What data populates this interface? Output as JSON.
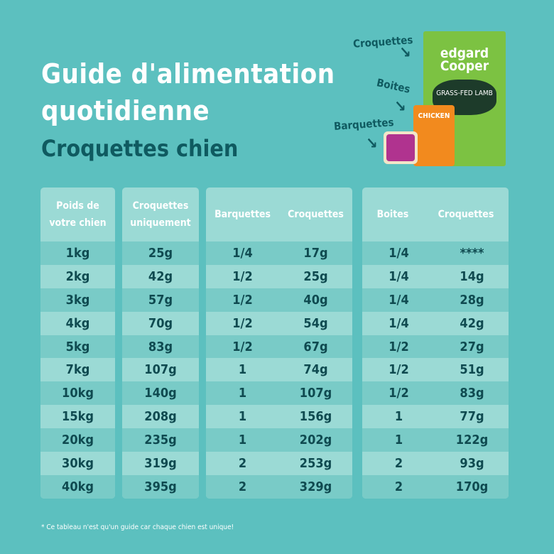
{
  "title": {
    "line1": "Guide d'alimentation",
    "line2": "quotidienne",
    "subtitle": "Croquettes chien"
  },
  "products": {
    "croquettes": "Croquettes",
    "boites": "Boites",
    "barquettes": "Barquettes",
    "brand": "edgard Cooper",
    "bag_text": "GRASS-FED LAMB",
    "can_text": "CHICKEN"
  },
  "tables": {
    "weight": {
      "header": [
        "Poids de",
        "votre chien"
      ],
      "rows": [
        "1kg",
        "2kg",
        "3kg",
        "4kg",
        "5kg",
        "7kg",
        "10kg",
        "15kg",
        "20kg",
        "30kg",
        "40kg"
      ]
    },
    "kibble_only": {
      "header": [
        "Croquettes",
        "uniquement"
      ],
      "rows": [
        "25g",
        "42g",
        "57g",
        "70g",
        "83g",
        "107g",
        "140g",
        "208g",
        "235g",
        "319g",
        "395g"
      ]
    },
    "trays": {
      "header": [
        "Barquettes",
        "Croquettes"
      ],
      "rows": [
        [
          "1/4",
          "17g"
        ],
        [
          "1/2",
          "25g"
        ],
        [
          "1/2",
          "40g"
        ],
        [
          "1/2",
          "54g"
        ],
        [
          "1/2",
          "67g"
        ],
        [
          "1",
          "74g"
        ],
        [
          "1",
          "107g"
        ],
        [
          "1",
          "156g"
        ],
        [
          "1",
          "202g"
        ],
        [
          "2",
          "253g"
        ],
        [
          "2",
          "329g"
        ]
      ]
    },
    "cans": {
      "header": [
        "Boites",
        "Croquettes"
      ],
      "rows": [
        [
          "1/4",
          "****"
        ],
        [
          "1/4",
          "14g"
        ],
        [
          "1/4",
          "28g"
        ],
        [
          "1/4",
          "42g"
        ],
        [
          "1/2",
          "27g"
        ],
        [
          "1/2",
          "51g"
        ],
        [
          "1/2",
          "83g"
        ],
        [
          "1",
          "77g"
        ],
        [
          "1",
          "122g"
        ],
        [
          "2",
          "93g"
        ],
        [
          "2",
          "170g"
        ]
      ]
    }
  },
  "footnote": "* Ce tableau n'est qu'un guide car chaque chien est unique!"
}
